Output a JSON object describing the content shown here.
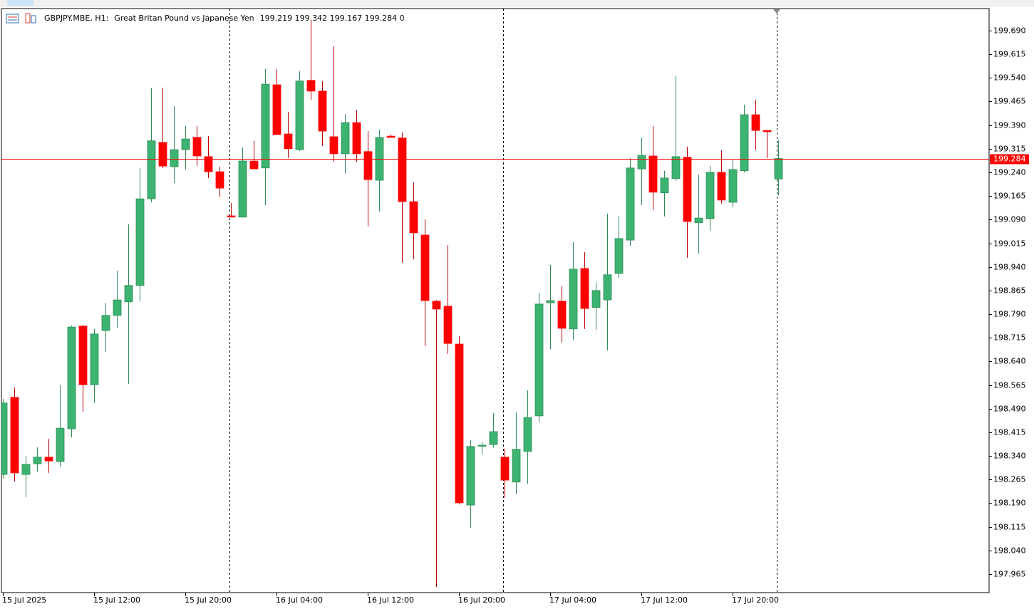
{
  "chart_data": {
    "type": "candlestick",
    "title": "GBPJPY.MBE, H1:",
    "subtitle": "Great Britan Pound vs Japanese Yen",
    "info": "199.219 199.342 199.167 199.284  0",
    "categories": [
      "15 Jul 2025",
      null,
      null,
      null,
      null,
      null,
      null,
      null,
      "15 Jul 12:00",
      null,
      null,
      null,
      null,
      null,
      null,
      null,
      "15 Jul 20:00",
      null,
      null,
      null,
      null,
      null,
      null,
      null,
      "16 Jul 04:00",
      null,
      null,
      null,
      null,
      null,
      null,
      null,
      "16 Jul 12:00",
      null,
      null,
      null,
      null,
      null,
      null,
      null,
      "16 Jul 20:00",
      null,
      null,
      null,
      null,
      null,
      null,
      null,
      "17 Jul 04:00",
      null,
      null,
      null,
      null,
      null,
      null,
      null,
      "17 Jul 12:00",
      null,
      null,
      null,
      null,
      null,
      null,
      null,
      "17 Jul 20:00",
      null,
      null,
      null,
      null
    ],
    "open": [
      198.281,
      198.526,
      198.281,
      198.315,
      198.336,
      198.322,
      198.426,
      198.752,
      198.566,
      198.738,
      198.786,
      198.829,
      198.881,
      199.156,
      199.335,
      199.258,
      199.312,
      199.351,
      199.29,
      199.242,
      199.102,
      199.098,
      199.276,
      199.254,
      199.518,
      199.362,
      199.312,
      199.532,
      199.498,
      199.353,
      199.299,
      199.398,
      199.306,
      199.215,
      199.355,
      199.349,
      199.147,
      199.041,
      198.831,
      198.815,
      198.695,
      198.184,
      198.372,
      198.376,
      198.336,
      198.257,
      198.354,
      198.467,
      198.826,
      198.831,
      198.743,
      198.935,
      198.811,
      198.835,
      198.919,
      199.025,
      199.251,
      199.292,
      199.175,
      199.22,
      199.288,
      199.08,
      199.093,
      199.24,
      199.145,
      199.245,
      199.423,
      199.373,
      199.219
    ],
    "high": [
      198.521,
      198.557,
      198.34,
      198.367,
      198.394,
      198.564,
      198.754,
      198.754,
      198.743,
      198.826,
      198.928,
      199.075,
      199.254,
      199.507,
      199.509,
      199.45,
      199.387,
      199.387,
      199.355,
      199.258,
      199.143,
      199.319,
      199.34,
      199.568,
      199.568,
      199.432,
      199.561,
      199.724,
      199.53,
      199.64,
      199.425,
      199.439,
      199.371,
      199.376,
      199.36,
      199.367,
      199.208,
      199.091,
      198.835,
      199.009,
      198.72,
      198.39,
      198.385,
      198.476,
      198.363,
      198.478,
      198.548,
      198.858,
      198.946,
      198.878,
      199.019,
      198.987,
      198.89,
      199.109,
      199.102,
      199.285,
      199.351,
      199.387,
      199.245,
      199.545,
      199.322,
      199.233,
      199.26,
      199.31,
      199.281,
      199.455,
      199.471,
      199.373,
      199.342
    ],
    "low": [
      198.268,
      198.259,
      198.209,
      198.29,
      198.286,
      198.306,
      198.399,
      198.48,
      198.508,
      198.67,
      198.747,
      198.569,
      198.831,
      199.145,
      199.254,
      199.206,
      199.249,
      199.26,
      199.222,
      199.163,
      199.098,
      199.098,
      199.251,
      199.136,
      199.36,
      199.285,
      199.308,
      199.471,
      199.324,
      199.274,
      199.236,
      199.272,
      199.068,
      199.116,
      199.349,
      198.953,
      198.964,
      198.688,
      197.924,
      198.664,
      198.186,
      198.112,
      198.345,
      198.367,
      198.207,
      198.218,
      198.252,
      198.446,
      198.679,
      198.7,
      198.707,
      198.743,
      198.74,
      198.675,
      198.905,
      199.007,
      199.136,
      199.12,
      199.1,
      199.213,
      198.969,
      198.982,
      199.055,
      199.141,
      199.129,
      199.24,
      199.31,
      199.285,
      199.167
    ],
    "close": [
      198.508,
      198.286,
      198.313,
      198.336,
      198.324,
      198.428,
      198.749,
      198.566,
      198.727,
      198.786,
      198.835,
      198.881,
      199.156,
      199.34,
      199.26,
      199.312,
      199.346,
      199.292,
      199.242,
      199.19,
      199.098,
      199.276,
      199.251,
      199.52,
      199.36,
      199.315,
      199.53,
      199.498,
      199.371,
      199.299,
      199.398,
      199.299,
      199.217,
      199.351,
      199.351,
      199.147,
      199.048,
      198.833,
      198.806,
      198.697,
      198.191,
      198.37,
      198.374,
      198.417,
      198.263,
      198.361,
      198.462,
      198.822,
      198.833,
      198.745,
      198.933,
      198.808,
      198.865,
      198.915,
      199.03,
      199.254,
      199.294,
      199.177,
      199.222,
      199.29,
      199.084,
      199.095,
      199.24,
      199.152,
      199.249,
      199.423,
      199.373,
      199.369,
      199.284
    ],
    "up_color": "#3cb371",
    "down_color": "#ff0000",
    "current_price": 199.284,
    "current_color": "#ff0000",
    "ylim": [
      197.906,
      199.76
    ],
    "yticks": [
      {
        "value": 199.69,
        "label": "199.690"
      },
      199.615,
      {
        "value": 199.54,
        "label": "199.540"
      },
      199.465,
      {
        "value": 199.39,
        "label": "199.390"
      },
      199.315,
      {
        "value": 199.24,
        "label": "199.240"
      },
      199.165,
      {
        "value": 199.09,
        "label": "199.090"
      },
      199.015,
      {
        "value": 198.94,
        "label": "198.940"
      },
      198.865,
      {
        "value": 198.79,
        "label": "198.790"
      },
      198.715,
      {
        "value": 198.64,
        "label": "198.640"
      },
      198.565,
      {
        "value": 198.49,
        "label": "198.490"
      },
      198.415,
      {
        "value": 198.34,
        "label": "198.340"
      },
      198.265,
      {
        "value": 198.19,
        "label": "198.190"
      },
      198.115,
      {
        "value": 198.04,
        "label": "198.040"
      },
      197.965
    ]
  }
}
